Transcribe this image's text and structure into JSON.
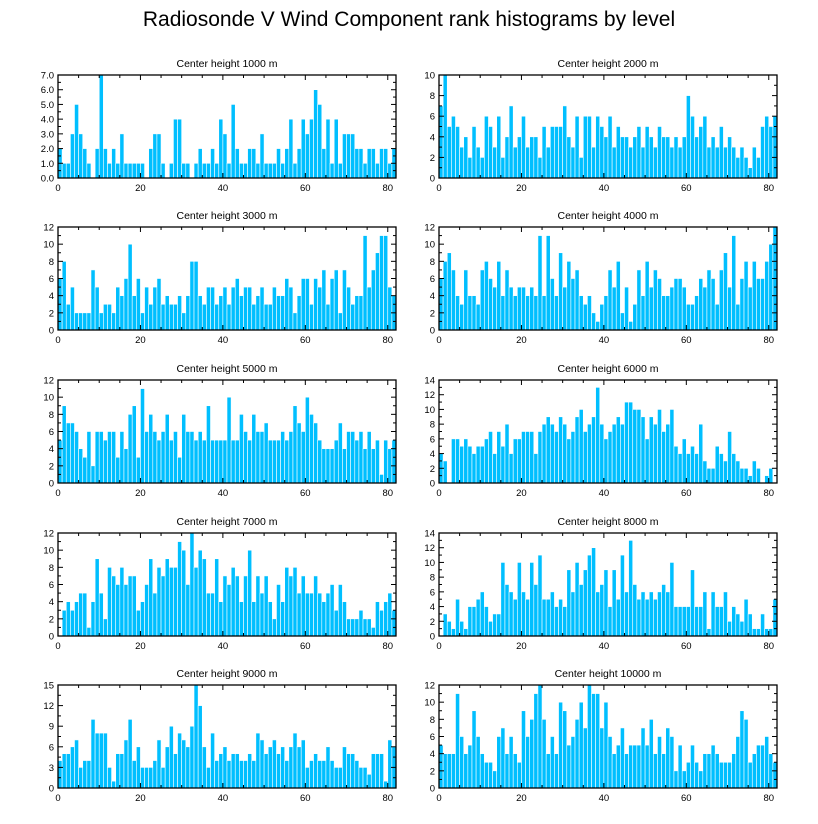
{
  "title": "Radiosonde V Wind Component rank histograms by level",
  "colors": {
    "bar_fill": "#00bfff",
    "bar_stroke": "#ffffff",
    "axis": "#000000"
  },
  "chart_data": [
    {
      "type": "bar",
      "title": "Center height 1000 m",
      "ylim": [
        0,
        7
      ],
      "yticks": [
        0,
        1,
        2,
        3,
        4,
        5,
        6,
        7
      ],
      "ytick_labels": [
        "0.0",
        "1.0",
        "2.0",
        "3.0",
        "4.0",
        "5.0",
        "6.0",
        "7.0"
      ],
      "xlim": [
        0,
        82
      ],
      "xticks": [
        0,
        20,
        40,
        60,
        80
      ],
      "xtick_labels": [
        "0",
        "20",
        "40",
        "60",
        "80"
      ],
      "values": [
        2,
        1,
        1,
        3,
        5,
        3,
        2,
        1,
        0,
        2,
        7,
        2,
        1,
        2,
        1,
        3,
        1,
        1,
        1,
        1,
        1,
        0,
        2,
        3,
        3,
        1,
        0,
        1,
        4,
        4,
        1,
        1,
        0,
        1,
        2,
        1,
        1,
        2,
        1,
        4,
        3,
        1,
        5,
        2,
        1,
        1,
        2,
        2,
        1,
        3,
        1,
        1,
        1,
        2,
        1,
        2,
        4,
        1,
        2,
        4,
        3,
        4,
        6,
        5,
        2,
        4,
        1,
        4,
        1,
        3,
        3,
        3,
        2,
        2,
        1,
        2,
        2,
        1,
        2,
        2,
        1,
        2
      ]
    },
    {
      "type": "bar",
      "title": "Center height 2000 m",
      "ylim": [
        0,
        10
      ],
      "yticks": [
        0,
        2,
        4,
        6,
        8,
        10
      ],
      "ytick_labels": [
        "0",
        "2",
        "4",
        "6",
        "8",
        "10"
      ],
      "xlim": [
        0,
        82
      ],
      "xticks": [
        0,
        20,
        40,
        60,
        80
      ],
      "xtick_labels": [
        "0",
        "20",
        "40",
        "60",
        "80"
      ],
      "values": [
        7,
        10,
        5,
        6,
        5,
        3,
        4,
        2,
        5,
        3,
        2,
        6,
        5,
        3,
        6,
        2,
        4,
        7,
        3,
        4,
        6,
        3,
        4,
        4,
        2,
        5,
        3,
        5,
        5,
        5,
        7,
        4,
        3,
        6,
        2,
        6,
        6,
        3,
        6,
        5,
        4,
        6,
        3,
        5,
        4,
        4,
        3,
        4,
        5,
        3,
        5,
        4,
        3,
        5,
        4,
        4,
        3,
        4,
        3,
        4,
        8,
        6,
        4,
        5,
        6,
        3,
        4,
        3,
        5,
        3,
        4,
        3,
        2,
        3,
        2,
        1,
        3,
        2,
        5,
        6,
        5,
        6
      ]
    },
    {
      "type": "bar",
      "title": "Center height 3000 m",
      "ylim": [
        0,
        12
      ],
      "yticks": [
        0,
        2,
        4,
        6,
        8,
        10,
        12
      ],
      "ytick_labels": [
        "0",
        "2",
        "4",
        "6",
        "8",
        "10",
        "12"
      ],
      "xlim": [
        0,
        82
      ],
      "xticks": [
        0,
        20,
        40,
        60,
        80
      ],
      "xtick_labels": [
        "0",
        "20",
        "40",
        "60",
        "80"
      ],
      "values": [
        6,
        8,
        3,
        5,
        2,
        2,
        2,
        2,
        7,
        5,
        2,
        3,
        3,
        2,
        5,
        4,
        6,
        10,
        4,
        6,
        2,
        5,
        3,
        5,
        6,
        3,
        4,
        3,
        3,
        4,
        2,
        4,
        8,
        8,
        4,
        3,
        5,
        5,
        3,
        4,
        5,
        3,
        5,
        6,
        4,
        5,
        5,
        3,
        4,
        5,
        3,
        3,
        5,
        4,
        4,
        6,
        5,
        2,
        4,
        6,
        6,
        3,
        6,
        5,
        7,
        3,
        6,
        7,
        2,
        7,
        5,
        3,
        4,
        4,
        11,
        5,
        7,
        9,
        11,
        11,
        5,
        4
      ]
    },
    {
      "type": "bar",
      "title": "Center height 4000 m",
      "ylim": [
        0,
        12
      ],
      "yticks": [
        0,
        2,
        4,
        6,
        8,
        10,
        12
      ],
      "ytick_labels": [
        "0",
        "2",
        "4",
        "6",
        "8",
        "10",
        "12"
      ],
      "xlim": [
        0,
        82
      ],
      "xticks": [
        0,
        20,
        40,
        60,
        80
      ],
      "xtick_labels": [
        "0",
        "20",
        "40",
        "60",
        "80"
      ],
      "values": [
        6,
        8,
        9,
        7,
        4,
        3,
        7,
        4,
        4,
        3,
        7,
        8,
        6,
        5,
        8,
        4,
        7,
        5,
        4,
        5,
        5,
        4,
        5,
        4,
        11,
        4,
        11,
        6,
        4,
        9,
        5,
        8,
        6,
        7,
        4,
        3,
        4,
        2,
        1,
        3,
        4,
        7,
        5,
        8,
        2,
        5,
        1,
        3,
        7,
        4,
        8,
        5,
        7,
        6,
        4,
        4,
        5,
        6,
        6,
        5,
        3,
        3,
        4,
        6,
        5,
        7,
        6,
        3,
        7,
        9,
        5,
        11,
        3,
        6,
        8,
        5,
        8,
        6,
        6,
        8,
        10,
        12
      ]
    },
    {
      "type": "bar",
      "title": "Center height 5000 m",
      "ylim": [
        0,
        12
      ],
      "yticks": [
        0,
        2,
        4,
        6,
        8,
        10,
        12
      ],
      "ytick_labels": [
        "0",
        "2",
        "4",
        "6",
        "8",
        "10",
        "12"
      ],
      "xlim": [
        0,
        82
      ],
      "xticks": [
        0,
        20,
        40,
        60,
        80
      ],
      "xtick_labels": [
        "0",
        "20",
        "40",
        "60",
        "80"
      ],
      "values": [
        5,
        9,
        7,
        7,
        6,
        4,
        3,
        6,
        2,
        6,
        6,
        5,
        6,
        6,
        3,
        6,
        4,
        8,
        9,
        3,
        11,
        6,
        8,
        6,
        5,
        6,
        8,
        5,
        6,
        3,
        8,
        6,
        6,
        5,
        6,
        5,
        9,
        5,
        5,
        5,
        5,
        10,
        5,
        5,
        8,
        6,
        5,
        8,
        6,
        6,
        7,
        5,
        5,
        5,
        6,
        5,
        6,
        9,
        7,
        6,
        10,
        8,
        7,
        5,
        4,
        4,
        4,
        5,
        7,
        4,
        6,
        6,
        5,
        6,
        4,
        6,
        4,
        5,
        1,
        5,
        4,
        5
      ]
    },
    {
      "type": "bar",
      "title": "Center height 6000 m",
      "ylim": [
        0,
        14
      ],
      "yticks": [
        0,
        2,
        4,
        6,
        8,
        10,
        12,
        14
      ],
      "ytick_labels": [
        "0",
        "2",
        "4",
        "6",
        "8",
        "10",
        "12",
        "14"
      ],
      "xlim": [
        0,
        82
      ],
      "xticks": [
        0,
        20,
        40,
        60,
        80
      ],
      "xtick_labels": [
        "0",
        "20",
        "40",
        "60",
        "80"
      ],
      "values": [
        4,
        3,
        0,
        6,
        6,
        5,
        6,
        5,
        4,
        5,
        5,
        6,
        7,
        4,
        7,
        5,
        8,
        4,
        6,
        6,
        7,
        7,
        7,
        4,
        7,
        8,
        9,
        8,
        7,
        9,
        8,
        6,
        7,
        9,
        10,
        7,
        8,
        9,
        13,
        8,
        6,
        7,
        8,
        9,
        8,
        11,
        11,
        10,
        10,
        9,
        6,
        9,
        8,
        10,
        7,
        8,
        10,
        5,
        4,
        6,
        4,
        5,
        4,
        8,
        3,
        2,
        2,
        5,
        4,
        3,
        7,
        4,
        3,
        2,
        2,
        1,
        3,
        2,
        0,
        1,
        2,
        0
      ]
    },
    {
      "type": "bar",
      "title": "Center height 7000 m",
      "ylim": [
        0,
        12
      ],
      "yticks": [
        0,
        2,
        4,
        6,
        8,
        10,
        12
      ],
      "ytick_labels": [
        "0",
        "2",
        "4",
        "6",
        "8",
        "10",
        "12"
      ],
      "xlim": [
        0,
        82
      ],
      "xticks": [
        0,
        20,
        40,
        60,
        80
      ],
      "xtick_labels": [
        "0",
        "20",
        "40",
        "60",
        "80"
      ],
      "values": [
        0,
        3,
        4,
        3,
        4,
        5,
        5,
        1,
        4,
        9,
        5,
        2,
        8,
        7,
        6,
        8,
        6,
        7,
        7,
        3,
        4,
        6,
        9,
        5,
        8,
        7,
        9,
        8,
        8,
        11,
        10,
        6,
        12,
        8,
        10,
        9,
        5,
        5,
        9,
        4,
        7,
        6,
        8,
        7,
        4,
        7,
        10,
        4,
        7,
        5,
        7,
        4,
        2,
        6,
        4,
        8,
        7,
        8,
        5,
        7,
        5,
        5,
        7,
        5,
        4,
        5,
        6,
        3,
        6,
        4,
        2,
        2,
        2,
        3,
        2,
        2,
        1,
        4,
        3,
        4,
        5,
        3
      ]
    },
    {
      "type": "bar",
      "title": "Center height 8000 m",
      "ylim": [
        0,
        14
      ],
      "yticks": [
        0,
        2,
        4,
        6,
        8,
        10,
        12,
        14
      ],
      "ytick_labels": [
        "0",
        "2",
        "4",
        "6",
        "8",
        "10",
        "12",
        "14"
      ],
      "xlim": [
        0,
        82
      ],
      "xticks": [
        0,
        20,
        40,
        60,
        80
      ],
      "xtick_labels": [
        "0",
        "20",
        "40",
        "60",
        "80"
      ],
      "values": [
        0,
        3,
        2,
        1,
        5,
        2,
        1,
        4,
        4,
        5,
        6,
        4,
        2,
        3,
        3,
        10,
        7,
        6,
        5,
        10,
        6,
        5,
        10,
        7,
        11,
        5,
        5,
        6,
        4,
        5,
        4,
        9,
        6,
        10,
        7,
        9,
        11,
        12,
        6,
        7,
        9,
        4,
        9,
        5,
        11,
        6,
        13,
        7,
        5,
        6,
        5,
        6,
        5,
        6,
        7,
        6,
        10,
        4,
        4,
        4,
        4,
        9,
        4,
        4,
        6,
        1,
        6,
        4,
        4,
        6,
        2,
        4,
        3,
        2,
        5,
        3,
        1,
        1,
        3,
        1,
        1,
        5
      ]
    },
    {
      "type": "bar",
      "title": "Center height 9000 m",
      "ylim": [
        0,
        15
      ],
      "yticks": [
        0,
        3,
        6,
        9,
        12,
        15
      ],
      "ytick_labels": [
        "0",
        "3",
        "6",
        "9",
        "12",
        "15"
      ],
      "xlim": [
        0,
        82
      ],
      "xticks": [
        0,
        20,
        40,
        60,
        80
      ],
      "xtick_labels": [
        "0",
        "20",
        "40",
        "60",
        "80"
      ],
      "values": [
        4,
        5,
        5,
        6,
        7,
        3,
        4,
        4,
        10,
        8,
        8,
        8,
        3,
        1,
        5,
        5,
        7,
        10,
        4,
        6,
        3,
        3,
        3,
        4,
        7,
        3,
        6,
        9,
        5,
        8,
        7,
        6,
        9,
        15,
        12,
        6,
        3,
        8,
        4,
        5,
        6,
        4,
        5,
        5,
        4,
        4,
        5,
        4,
        8,
        7,
        5,
        6,
        7,
        5,
        6,
        4,
        6,
        8,
        6,
        7,
        3,
        4,
        5,
        4,
        4,
        6,
        4,
        3,
        3,
        6,
        5,
        5,
        4,
        3,
        3,
        2,
        5,
        5,
        5,
        1,
        7,
        6
      ]
    },
    {
      "type": "bar",
      "title": "Center height 10000 m",
      "ylim": [
        0,
        12
      ],
      "yticks": [
        0,
        2,
        4,
        6,
        8,
        10,
        12
      ],
      "ytick_labels": [
        "0",
        "2",
        "4",
        "6",
        "8",
        "10",
        "12"
      ],
      "xlim": [
        0,
        82
      ],
      "xticks": [
        0,
        20,
        40,
        60,
        80
      ],
      "xtick_labels": [
        "0",
        "20",
        "40",
        "60",
        "80"
      ],
      "values": [
        5,
        4,
        4,
        4,
        11,
        6,
        4,
        5,
        9,
        6,
        4,
        3,
        3,
        2,
        6,
        7,
        4,
        6,
        4,
        3,
        9,
        6,
        8,
        11,
        12,
        8,
        4,
        6,
        4,
        10,
        9,
        5,
        6,
        8,
        10,
        7,
        12,
        11,
        11,
        7,
        10,
        6,
        4,
        5,
        7,
        4,
        5,
        5,
        5,
        7,
        5,
        8,
        4,
        6,
        4,
        7,
        6,
        2,
        5,
        2,
        3,
        5,
        3,
        2,
        4,
        4,
        5,
        4,
        3,
        3,
        3,
        4,
        6,
        9,
        8,
        3,
        4,
        5,
        5,
        6,
        4,
        3
      ]
    }
  ]
}
